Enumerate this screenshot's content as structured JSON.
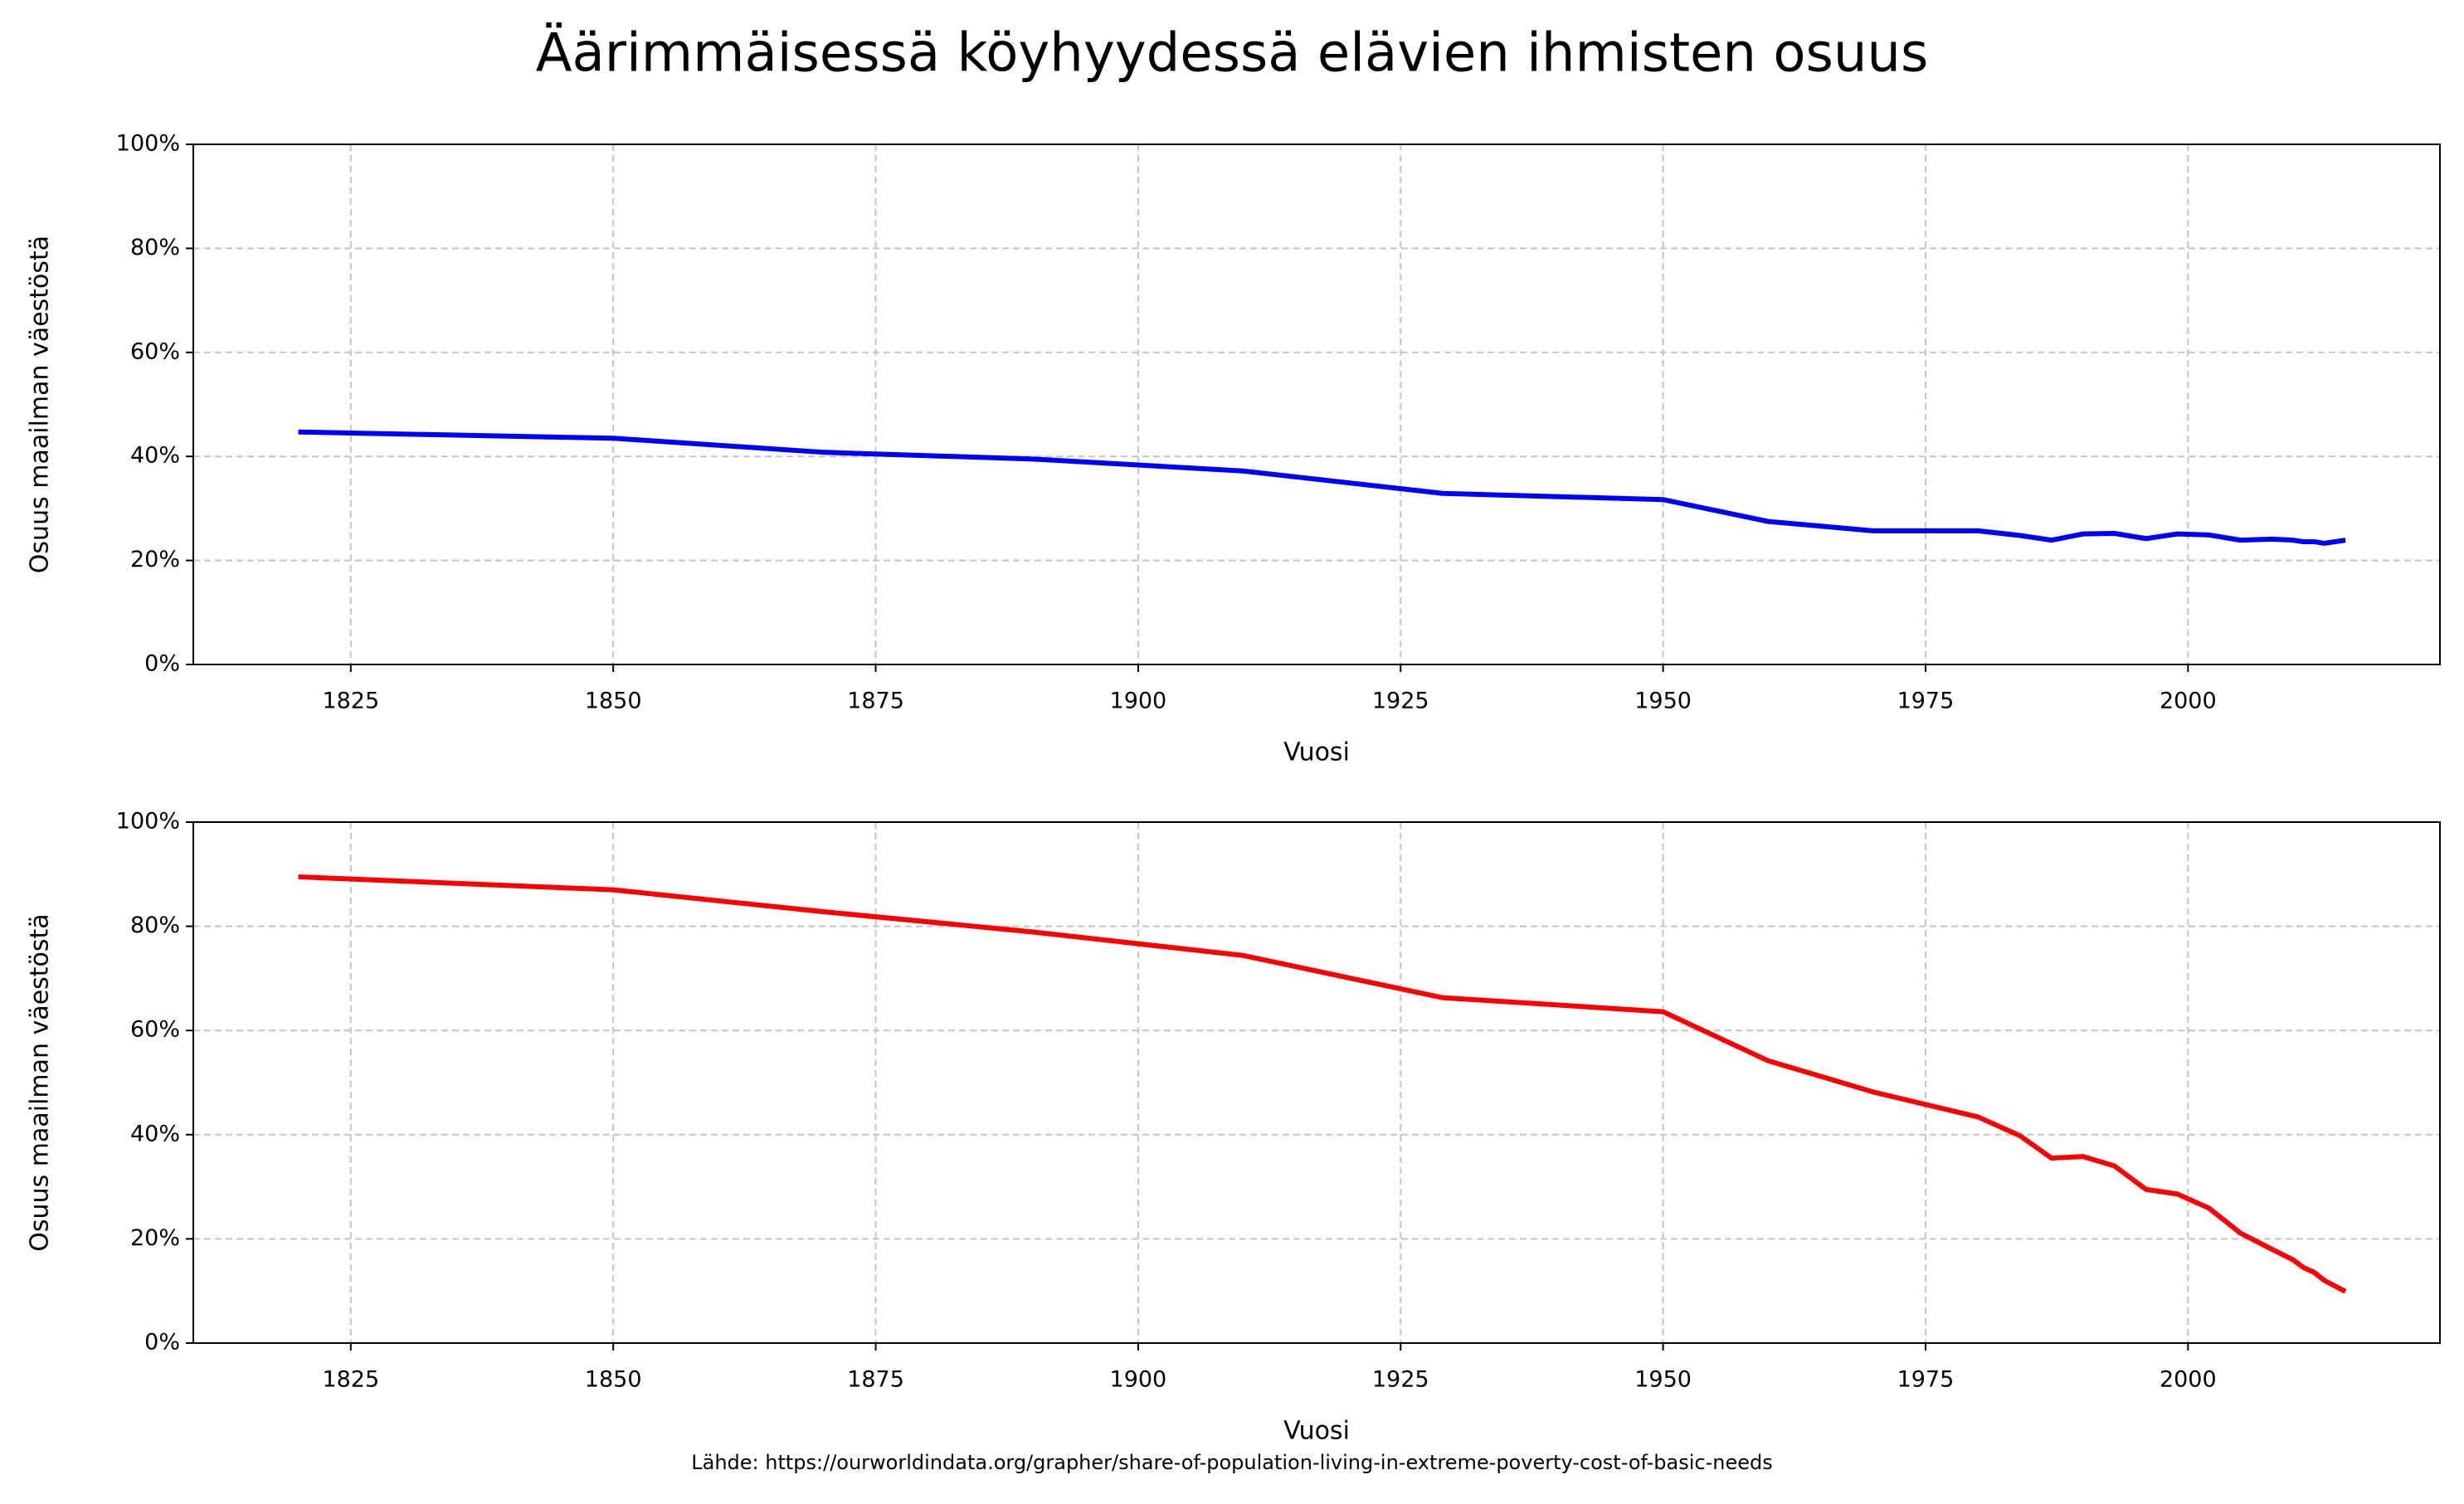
{
  "title": "Äärimmäisessä köyhyydessä elävien ihmisten osuus",
  "source": "Lähde: https://ourworldindata.org/grapher/share-of-population-living-in-extreme-poverty-cost-of-basic-needs",
  "chart_data": [
    {
      "type": "line",
      "xlabel": "Vuosi",
      "ylabel": "Osuus maailman väestöstä",
      "x": [
        1820,
        1850,
        1870,
        1890,
        1910,
        1929,
        1950,
        1960,
        1970,
        1980,
        1984,
        1987,
        1990,
        1993,
        1996,
        1999,
        2002,
        2005,
        2008,
        2010,
        2011,
        2012,
        2013,
        2015
      ],
      "series": [
        {
          "color": "#0000ff",
          "values": [
            44.7,
            43.5,
            40.8,
            39.5,
            37.2,
            32.9,
            31.7,
            27.5,
            25.7,
            25.7,
            24.8,
            23.9,
            25.1,
            25.2,
            24.2,
            25.1,
            24.9,
            23.9,
            24.1,
            23.9,
            23.6,
            23.6,
            23.3,
            23.9
          ]
        }
      ],
      "xlim": [
        1810,
        2024
      ],
      "ylim": [
        0,
        100
      ],
      "xticks": [
        1825,
        1850,
        1875,
        1900,
        1925,
        1950,
        1975,
        2000
      ],
      "yticks": [
        {
          "value": 0,
          "label": "0%"
        },
        {
          "value": 20,
          "label": "20%"
        },
        {
          "value": 40,
          "label": "40%"
        },
        {
          "value": 60,
          "label": "60%"
        },
        {
          "value": 80,
          "label": "80%"
        },
        {
          "value": 100,
          "label": "100%"
        }
      ],
      "grid": true
    },
    {
      "type": "line",
      "xlabel": "Vuosi",
      "ylabel": "Osuus maailman väestöstä",
      "x": [
        1820,
        1850,
        1870,
        1890,
        1910,
        1929,
        1950,
        1960,
        1970,
        1980,
        1984,
        1987,
        1990,
        1993,
        1996,
        1999,
        2002,
        2005,
        2008,
        2010,
        2011,
        2012,
        2013,
        2015
      ],
      "series": [
        {
          "color": "#ff0000",
          "values": [
            89.5,
            87,
            82.8,
            78.9,
            74.4,
            66.3,
            63.6,
            54.2,
            48.2,
            43.4,
            39.8,
            35.5,
            35.8,
            34,
            29.5,
            28.6,
            25.9,
            21.1,
            18,
            16,
            14.5,
            13.6,
            12,
            9.9
          ]
        }
      ],
      "xlim": [
        1810,
        2024
      ],
      "ylim": [
        0,
        100
      ],
      "xticks": [
        1825,
        1850,
        1875,
        1900,
        1925,
        1950,
        1975,
        2000
      ],
      "yticks": [
        {
          "value": 0,
          "label": "0%"
        },
        {
          "value": 20,
          "label": "20%"
        },
        {
          "value": 40,
          "label": "40%"
        },
        {
          "value": 60,
          "label": "60%"
        },
        {
          "value": 80,
          "label": "80%"
        },
        {
          "value": 100,
          "label": "100%"
        }
      ],
      "grid": true
    }
  ]
}
